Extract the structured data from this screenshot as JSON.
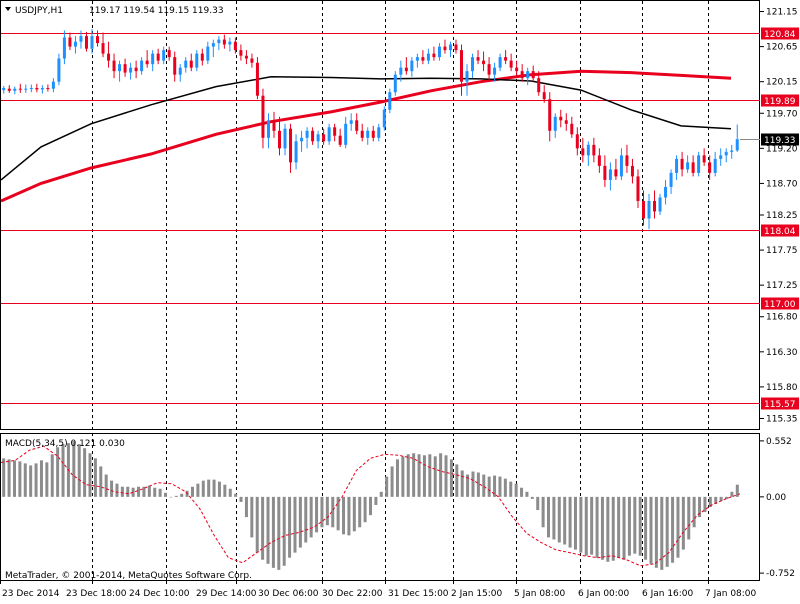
{
  "header": {
    "symbol": "USDJPY,H1",
    "ohlc": "119.17 119.54 119.15 119.33"
  },
  "macd": {
    "title": "MACD(5,34,5) 0.121 0.030",
    "ticks": [
      "0.552",
      "0.00",
      "-0.752"
    ],
    "tick_values": [
      0.552,
      0.0,
      -0.752
    ],
    "range": [
      -0.82,
      0.62
    ]
  },
  "footer": {
    "copyright": "MetaTrader, © 2001-2014, MetaQuotes Software Corp."
  },
  "colors": {
    "bull": "#1e90ff",
    "bear": "#e8001e",
    "level": "#e8001e",
    "ma_slow": "#e8001e",
    "ma_fast": "#000000",
    "grid": "#000000",
    "hist": "#8c8c8c",
    "signal": "#e8001e",
    "current_box": "#000000"
  },
  "chart_data": {
    "type": "candlestick",
    "ylim": [
      115.2,
      121.3
    ],
    "y_ticks": [
      "121.15",
      "120.65",
      "120.15",
      "119.70",
      "119.20",
      "118.70",
      "118.25",
      "117.75",
      "117.25",
      "116.80",
      "116.30",
      "115.80",
      "115.35"
    ],
    "y_tick_values": [
      121.15,
      120.65,
      120.15,
      119.7,
      119.2,
      118.7,
      118.25,
      117.75,
      117.25,
      116.8,
      116.3,
      115.8,
      115.35
    ],
    "x_ticks": [
      "23 Dec 2014",
      "23 Dec 18:00",
      "24 Dec 10:00",
      "29 Dec 14:00",
      "30 Dec 06:00",
      "30 Dec 22:00",
      "31 Dec 15:00",
      "2 Jan 15:00",
      "5 Jan 08:00",
      "6 Jan 00:00",
      "6 Jan 16:00",
      "7 Jan 08:00"
    ],
    "levels": [
      {
        "label": "120.84",
        "value": 120.84
      },
      {
        "label": "119.89",
        "value": 119.89
      },
      {
        "label": "118.04",
        "value": 118.04
      },
      {
        "label": "117.00",
        "value": 117.0
      },
      {
        "label": "115.57",
        "value": 115.57
      }
    ],
    "current_price": {
      "label": "119.33",
      "value": 119.33
    },
    "candles": [
      [
        120.03,
        120.09,
        119.98,
        120.06
      ],
      [
        120.05,
        120.1,
        119.99,
        120.02
      ],
      [
        120.02,
        120.08,
        119.97,
        120.05
      ],
      [
        120.05,
        120.12,
        119.99,
        120.04
      ],
      [
        120.04,
        120.11,
        119.99,
        120.05
      ],
      [
        120.05,
        120.11,
        120.0,
        120.06
      ],
      [
        120.06,
        120.12,
        120.0,
        120.04
      ],
      [
        120.04,
        120.1,
        119.98,
        120.06
      ],
      [
        120.06,
        120.11,
        120.01,
        120.05
      ],
      [
        120.05,
        120.2,
        120.0,
        120.15
      ],
      [
        120.15,
        120.55,
        120.1,
        120.48
      ],
      [
        120.48,
        120.88,
        120.4,
        120.78
      ],
      [
        120.78,
        120.85,
        120.6,
        120.65
      ],
      [
        120.65,
        120.8,
        120.55,
        120.72
      ],
      [
        120.72,
        120.88,
        120.62,
        120.8
      ],
      [
        120.8,
        120.86,
        120.58,
        120.62
      ],
      [
        120.62,
        120.9,
        120.55,
        120.8
      ],
      [
        120.8,
        120.88,
        120.65,
        120.7
      ],
      [
        120.7,
        120.85,
        120.5,
        120.55
      ],
      [
        120.55,
        120.72,
        120.35,
        120.45
      ],
      [
        120.45,
        120.55,
        120.2,
        120.3
      ],
      [
        120.3,
        120.45,
        120.15,
        120.4
      ],
      [
        120.4,
        120.48,
        120.22,
        120.28
      ],
      [
        120.28,
        120.42,
        120.18,
        120.35
      ],
      [
        120.35,
        120.45,
        120.2,
        120.3
      ],
      [
        120.3,
        120.5,
        120.25,
        120.45
      ],
      [
        120.45,
        120.6,
        120.35,
        120.4
      ],
      [
        120.4,
        120.6,
        120.3,
        120.55
      ],
      [
        120.55,
        120.62,
        120.4,
        120.45
      ],
      [
        120.45,
        120.65,
        120.4,
        120.6
      ],
      [
        120.6,
        120.65,
        120.45,
        120.5
      ],
      [
        120.5,
        120.58,
        120.15,
        120.25
      ],
      [
        120.25,
        120.4,
        120.15,
        120.35
      ],
      [
        120.35,
        120.5,
        120.28,
        120.45
      ],
      [
        120.45,
        120.55,
        120.3,
        120.35
      ],
      [
        120.35,
        120.6,
        120.3,
        120.55
      ],
      [
        120.55,
        120.62,
        120.38,
        120.45
      ],
      [
        120.45,
        120.72,
        120.4,
        120.65
      ],
      [
        120.65,
        120.75,
        120.5,
        120.7
      ],
      [
        120.7,
        120.8,
        120.6,
        120.75
      ],
      [
        120.75,
        120.82,
        120.62,
        120.68
      ],
      [
        120.68,
        120.78,
        120.58,
        120.72
      ],
      [
        120.72,
        120.78,
        120.55,
        120.6
      ],
      [
        120.6,
        120.68,
        120.45,
        120.52
      ],
      [
        120.52,
        120.6,
        120.4,
        120.48
      ],
      [
        120.48,
        120.55,
        120.35,
        120.42
      ],
      [
        120.42,
        120.5,
        119.9,
        119.95
      ],
      [
        119.95,
        120.05,
        119.2,
        119.35
      ],
      [
        119.35,
        119.7,
        119.2,
        119.6
      ],
      [
        119.6,
        119.72,
        119.35,
        119.45
      ],
      [
        119.45,
        119.65,
        119.1,
        119.2
      ],
      [
        119.2,
        119.55,
        119.1,
        119.48
      ],
      [
        119.48,
        119.55,
        118.85,
        119.0
      ],
      [
        119.0,
        119.4,
        118.9,
        119.3
      ],
      [
        119.3,
        119.45,
        119.15,
        119.35
      ],
      [
        119.35,
        119.5,
        119.2,
        119.45
      ],
      [
        119.45,
        119.5,
        119.25,
        119.3
      ],
      [
        119.3,
        119.45,
        119.2,
        119.4
      ],
      [
        119.4,
        119.48,
        119.25,
        119.3
      ],
      [
        119.3,
        119.55,
        119.25,
        119.5
      ],
      [
        119.5,
        119.55,
        119.3,
        119.38
      ],
      [
        119.38,
        119.48,
        119.22,
        119.25
      ],
      [
        119.25,
        119.65,
        119.2,
        119.55
      ],
      [
        119.55,
        119.7,
        119.45,
        119.6
      ],
      [
        119.6,
        119.7,
        119.4,
        119.45
      ],
      [
        119.45,
        119.55,
        119.3,
        119.35
      ],
      [
        119.35,
        119.5,
        119.25,
        119.45
      ],
      [
        119.45,
        119.52,
        119.3,
        119.35
      ],
      [
        119.35,
        119.55,
        119.3,
        119.5
      ],
      [
        119.5,
        119.8,
        119.45,
        119.75
      ],
      [
        119.75,
        120.05,
        119.7,
        120.0
      ],
      [
        120.0,
        120.3,
        119.95,
        120.25
      ],
      [
        120.25,
        120.45,
        120.15,
        120.35
      ],
      [
        120.35,
        120.5,
        120.25,
        120.3
      ],
      [
        120.3,
        120.5,
        120.22,
        120.45
      ],
      [
        120.45,
        120.55,
        120.35,
        120.5
      ],
      [
        120.5,
        120.6,
        120.4,
        120.45
      ],
      [
        120.45,
        120.62,
        120.4,
        120.55
      ],
      [
        120.55,
        120.65,
        120.45,
        120.5
      ],
      [
        120.5,
        120.7,
        120.45,
        120.65
      ],
      [
        120.65,
        120.75,
        120.55,
        120.6
      ],
      [
        120.6,
        120.72,
        120.5,
        120.68
      ],
      [
        120.68,
        120.75,
        120.55,
        120.6
      ],
      [
        120.6,
        120.68,
        119.95,
        120.15
      ],
      [
        120.15,
        120.4,
        119.95,
        120.3
      ],
      [
        120.3,
        120.55,
        120.2,
        120.5
      ],
      [
        120.5,
        120.6,
        120.4,
        120.45
      ],
      [
        120.45,
        120.58,
        120.3,
        120.4
      ],
      [
        120.4,
        120.5,
        120.15,
        120.25
      ],
      [
        120.25,
        120.42,
        120.15,
        120.35
      ],
      [
        120.35,
        120.55,
        120.3,
        120.5
      ],
      [
        120.5,
        120.6,
        120.4,
        120.45
      ],
      [
        120.45,
        120.55,
        120.3,
        120.35
      ],
      [
        120.35,
        120.45,
        120.2,
        120.3
      ],
      [
        120.3,
        120.4,
        120.15,
        120.2
      ],
      [
        120.2,
        120.35,
        120.1,
        120.3
      ],
      [
        120.3,
        120.38,
        120.15,
        120.2
      ],
      [
        120.2,
        120.3,
        119.95,
        120.0
      ],
      [
        120.0,
        120.1,
        119.85,
        119.9
      ],
      [
        119.9,
        120.0,
        119.3,
        119.45
      ],
      [
        119.45,
        119.7,
        119.35,
        119.65
      ],
      [
        119.65,
        119.75,
        119.5,
        119.6
      ],
      [
        119.6,
        119.7,
        119.45,
        119.55
      ],
      [
        119.55,
        119.65,
        119.35,
        119.4
      ],
      [
        119.4,
        119.5,
        119.1,
        119.2
      ],
      [
        119.2,
        119.35,
        119.0,
        119.1
      ],
      [
        119.1,
        119.3,
        118.95,
        119.25
      ],
      [
        119.25,
        119.35,
        119.0,
        119.1
      ],
      [
        119.1,
        119.2,
        118.85,
        118.95
      ],
      [
        118.95,
        119.1,
        118.65,
        118.75
      ],
      [
        118.75,
        119.0,
        118.6,
        118.9
      ],
      [
        118.9,
        119.05,
        118.75,
        118.8
      ],
      [
        118.8,
        119.2,
        118.75,
        119.1
      ],
      [
        119.1,
        119.25,
        118.85,
        118.95
      ],
      [
        118.95,
        119.05,
        118.7,
        118.8
      ],
      [
        118.8,
        118.9,
        118.35,
        118.45
      ],
      [
        118.45,
        118.6,
        118.1,
        118.2
      ],
      [
        118.2,
        118.55,
        118.05,
        118.45
      ],
      [
        118.45,
        118.6,
        118.2,
        118.3
      ],
      [
        118.3,
        118.55,
        118.25,
        118.5
      ],
      [
        118.5,
        118.75,
        118.4,
        118.65
      ],
      [
        118.65,
        118.9,
        118.55,
        118.85
      ],
      [
        118.85,
        119.1,
        118.75,
        119.05
      ],
      [
        119.05,
        119.15,
        118.8,
        118.9
      ],
      [
        118.9,
        119.1,
        118.85,
        119.0
      ],
      [
        119.0,
        119.1,
        118.8,
        118.85
      ],
      [
        118.85,
        119.15,
        118.8,
        119.1
      ],
      [
        119.1,
        119.2,
        118.95,
        119.0
      ],
      [
        119.0,
        119.1,
        118.75,
        118.85
      ],
      [
        118.85,
        119.15,
        118.8,
        119.05
      ],
      [
        119.05,
        119.2,
        118.95,
        119.1
      ],
      [
        119.1,
        119.2,
        119.0,
        119.15
      ],
      [
        119.15,
        119.25,
        119.05,
        119.17
      ],
      [
        119.17,
        119.54,
        119.15,
        119.33
      ]
    ],
    "ma_slow": [
      [
        0,
        118.45
      ],
      [
        40,
        118.7
      ],
      [
        90,
        118.92
      ],
      [
        150,
        119.12
      ],
      [
        215,
        119.4
      ],
      [
        270,
        119.58
      ],
      [
        330,
        119.72
      ],
      [
        380,
        119.86
      ],
      [
        430,
        120.02
      ],
      [
        480,
        120.15
      ],
      [
        530,
        120.25
      ],
      [
        580,
        120.3
      ],
      [
        630,
        120.28
      ],
      [
        680,
        120.24
      ],
      [
        730,
        120.2
      ]
    ],
    "ma_fast": [
      [
        0,
        118.75
      ],
      [
        40,
        119.22
      ],
      [
        90,
        119.55
      ],
      [
        150,
        119.82
      ],
      [
        215,
        120.08
      ],
      [
        270,
        120.22
      ],
      [
        330,
        120.21
      ],
      [
        380,
        120.19
      ],
      [
        430,
        120.2
      ],
      [
        480,
        120.19
      ],
      [
        530,
        120.16
      ],
      [
        580,
        120.03
      ],
      [
        630,
        119.75
      ],
      [
        680,
        119.52
      ],
      [
        730,
        119.48
      ]
    ],
    "macd_hist": [
      0.38,
      0.37,
      0.36,
      0.35,
      0.33,
      0.31,
      0.33,
      0.36,
      0.34,
      0.42,
      0.49,
      0.52,
      0.53,
      0.55,
      0.52,
      0.48,
      0.43,
      0.38,
      0.3,
      0.22,
      0.16,
      0.13,
      0.1,
      0.1,
      0.09,
      0.1,
      0.1,
      0.11,
      0.09,
      0.08,
      0.04,
      0.0,
      0.01,
      0.03,
      0.06,
      0.1,
      0.13,
      0.16,
      0.17,
      0.17,
      0.15,
      0.12,
      0.08,
      0.03,
      -0.05,
      -0.2,
      -0.4,
      -0.55,
      -0.62,
      -0.66,
      -0.7,
      -0.72,
      -0.68,
      -0.6,
      -0.55,
      -0.5,
      -0.45,
      -0.4,
      -0.35,
      -0.3,
      -0.28,
      -0.3,
      -0.33,
      -0.37,
      -0.38,
      -0.34,
      -0.3,
      -0.25,
      -0.18,
      -0.08,
      0.05,
      0.2,
      0.3,
      0.37,
      0.4,
      0.42,
      0.43,
      0.42,
      0.41,
      0.42,
      0.4,
      0.43,
      0.41,
      0.37,
      0.32,
      0.26,
      0.22,
      0.25,
      0.24,
      0.22,
      0.2,
      0.21,
      0.2,
      0.18,
      0.15,
      0.13,
      0.09,
      0.05,
      -0.02,
      -0.13,
      -0.3,
      -0.4,
      -0.42,
      -0.45,
      -0.47,
      -0.5,
      -0.52,
      -0.55,
      -0.58,
      -0.57,
      -0.6,
      -0.62,
      -0.64,
      -0.63,
      -0.6,
      -0.62,
      -0.58,
      -0.56,
      -0.58,
      -0.62,
      -0.66,
      -0.7,
      -0.72,
      -0.69,
      -0.65,
      -0.6,
      -0.52,
      -0.42,
      -0.3,
      -0.2,
      -0.15,
      -0.1,
      -0.07,
      -0.04,
      -0.02,
      0.05,
      0.12
    ],
    "macd_signal_points": [
      [
        0,
        0.34
      ],
      [
        10,
        0.36
      ],
      [
        20,
        0.46
      ],
      [
        30,
        0.5
      ],
      [
        40,
        0.4
      ],
      [
        50,
        0.22
      ],
      [
        60,
        0.12
      ],
      [
        70,
        0.1
      ],
      [
        80,
        0.05
      ],
      [
        90,
        0.03
      ],
      [
        100,
        0.08
      ],
      [
        110,
        0.14
      ],
      [
        120,
        0.13
      ],
      [
        130,
        0.05
      ],
      [
        140,
        -0.12
      ],
      [
        150,
        -0.38
      ],
      [
        160,
        -0.6
      ],
      [
        170,
        -0.65
      ],
      [
        180,
        -0.55
      ],
      [
        190,
        -0.45
      ],
      [
        200,
        -0.38
      ],
      [
        210,
        -0.35
      ],
      [
        220,
        -0.3
      ],
      [
        230,
        -0.2
      ],
      [
        240,
        0.0
      ],
      [
        250,
        0.26
      ],
      [
        260,
        0.38
      ],
      [
        270,
        0.42
      ],
      [
        280,
        0.41
      ],
      [
        290,
        0.38
      ],
      [
        300,
        0.3
      ],
      [
        310,
        0.25
      ],
      [
        320,
        0.22
      ],
      [
        330,
        0.18
      ],
      [
        340,
        0.1
      ],
      [
        350,
        0.0
      ],
      [
        360,
        -0.2
      ],
      [
        370,
        -0.36
      ],
      [
        380,
        -0.45
      ],
      [
        390,
        -0.52
      ],
      [
        400,
        -0.55
      ],
      [
        410,
        -0.58
      ],
      [
        420,
        -0.6
      ],
      [
        430,
        -0.58
      ],
      [
        440,
        -0.62
      ],
      [
        450,
        -0.68
      ],
      [
        460,
        -0.66
      ],
      [
        470,
        -0.55
      ],
      [
        480,
        -0.35
      ],
      [
        490,
        -0.18
      ],
      [
        500,
        -0.08
      ],
      [
        510,
        -0.02
      ],
      [
        520,
        0.03
      ]
    ]
  }
}
